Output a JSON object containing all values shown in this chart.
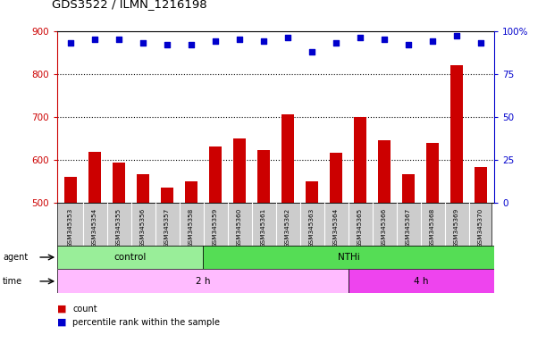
{
  "title": "GDS3522 / ILMN_1216198",
  "samples": [
    "GSM345353",
    "GSM345354",
    "GSM345355",
    "GSM345356",
    "GSM345357",
    "GSM345358",
    "GSM345359",
    "GSM345360",
    "GSM345361",
    "GSM345362",
    "GSM345363",
    "GSM345364",
    "GSM345365",
    "GSM345366",
    "GSM345367",
    "GSM345368",
    "GSM345369",
    "GSM345370"
  ],
  "counts": [
    560,
    618,
    592,
    565,
    535,
    550,
    630,
    650,
    622,
    705,
    550,
    615,
    700,
    645,
    565,
    638,
    820,
    582
  ],
  "percentile_ranks": [
    93,
    95,
    95,
    93,
    92,
    92,
    94,
    95,
    94,
    96,
    88,
    93,
    96,
    95,
    92,
    94,
    97,
    93
  ],
  "control_count": 6,
  "nthi_count": 12,
  "time_2h_count": 12,
  "time_4h_count": 6,
  "bar_color": "#cc0000",
  "dot_color": "#0000cc",
  "left_axis_color": "#cc0000",
  "right_axis_color": "#0000cc",
  "ylim_left": [
    500,
    900
  ],
  "ylim_right": [
    0,
    100
  ],
  "yticks_left": [
    500,
    600,
    700,
    800,
    900
  ],
  "yticks_right": [
    0,
    25,
    50,
    75,
    100
  ],
  "yticklabels_right": [
    "0",
    "25",
    "50",
    "75",
    "100%"
  ],
  "grid_values": [
    600,
    700,
    800
  ],
  "control_color": "#99ee99",
  "nthi_color": "#55dd55",
  "time_2h_color": "#ffbbff",
  "time_4h_color": "#ee44ee",
  "bar_width": 0.5,
  "background_color": "#cccccc",
  "cell_edge_color": "#ffffff"
}
